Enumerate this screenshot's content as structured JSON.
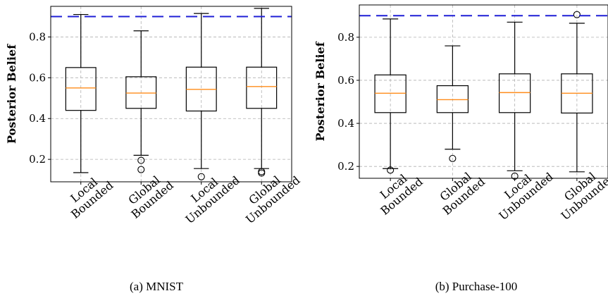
{
  "chart_data": [
    {
      "type": "box",
      "caption": "(a) MNIST",
      "ylabel": "Posterior Belief",
      "ylim": [
        0.09,
        0.95
      ],
      "yticks": [
        0.2,
        0.4,
        0.6,
        0.8
      ],
      "ytick_labels": [
        "0.2",
        "0.4",
        "0.6",
        "0.8"
      ],
      "grid": true,
      "reference_line": {
        "y": 0.9,
        "color": "#1f1fd6",
        "style": "dashed"
      },
      "box_color": "#000000",
      "median_color": "#ff8c1a",
      "categories": [
        [
          "Local",
          "Bounded"
        ],
        [
          "Global",
          "Bounded"
        ],
        [
          "Local",
          "Unbounded"
        ],
        [
          "Global",
          "Unbounded"
        ]
      ],
      "boxes": [
        {
          "whislo": 0.135,
          "q1": 0.44,
          "med": 0.55,
          "q3": 0.65,
          "whishi": 0.91,
          "fliers": []
        },
        {
          "whislo": 0.22,
          "q1": 0.45,
          "med": 0.525,
          "q3": 0.605,
          "whishi": 0.83,
          "fliers": [
            0.195,
            0.15
          ]
        },
        {
          "whislo": 0.155,
          "q1": 0.437,
          "med": 0.543,
          "q3": 0.652,
          "whishi": 0.915,
          "fliers": [
            0.115
          ]
        },
        {
          "whislo": 0.155,
          "q1": 0.45,
          "med": 0.557,
          "q3": 0.652,
          "whishi": 0.94,
          "fliers": [
            0.14,
            0.133
          ]
        }
      ]
    },
    {
      "type": "box",
      "caption": "(b) Purchase-100",
      "ylabel": "Posterior Belief",
      "ylim": [
        0.145,
        0.95
      ],
      "yticks": [
        0.2,
        0.4,
        0.6,
        0.8
      ],
      "ytick_labels": [
        "0.2",
        "0.4",
        "0.6",
        "0.8"
      ],
      "grid": true,
      "reference_line": {
        "y": 0.9,
        "color": "#1f1fd6",
        "style": "dashed"
      },
      "box_color": "#000000",
      "median_color": "#ff8c1a",
      "categories": [
        [
          "Local",
          "Bounded"
        ],
        [
          "Global",
          "Bounded"
        ],
        [
          "Local",
          "Unbounded"
        ],
        [
          "Global",
          "Unbounded"
        ]
      ],
      "boxes": [
        {
          "whislo": 0.19,
          "q1": 0.45,
          "med": 0.54,
          "q3": 0.625,
          "whishi": 0.885,
          "fliers": [
            0.183
          ]
        },
        {
          "whislo": 0.28,
          "q1": 0.45,
          "med": 0.51,
          "q3": 0.575,
          "whishi": 0.76,
          "fliers": [
            0.237
          ]
        },
        {
          "whislo": 0.18,
          "q1": 0.45,
          "med": 0.543,
          "q3": 0.63,
          "whishi": 0.87,
          "fliers": [
            0.155
          ]
        },
        {
          "whislo": 0.175,
          "q1": 0.448,
          "med": 0.54,
          "q3": 0.63,
          "whishi": 0.865,
          "fliers": [
            0.905
          ]
        }
      ]
    }
  ]
}
